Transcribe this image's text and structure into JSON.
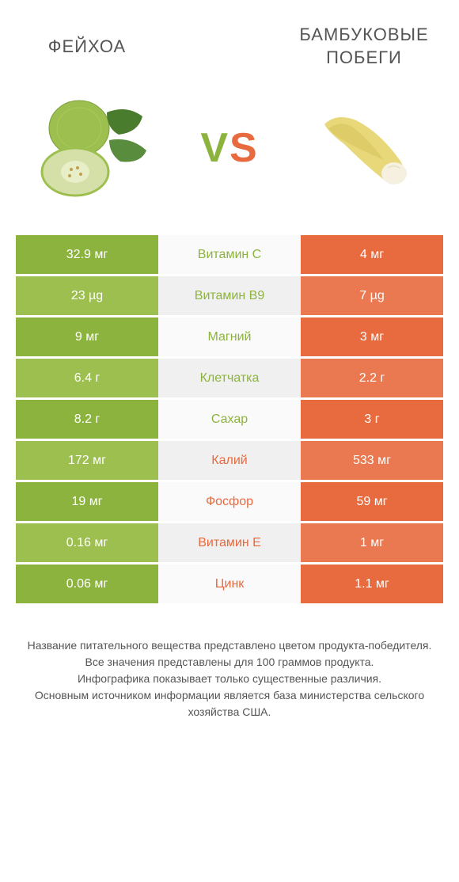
{
  "header": {
    "left_title": "ФЕЙХОА",
    "right_title": "БАМБУКОВЫЕ ПОБЕГИ",
    "vs_v": "V",
    "vs_s": "S"
  },
  "colors": {
    "left_primary": "#8db33f",
    "left_secondary": "#9cbf4f",
    "right_primary": "#e86a3f",
    "right_secondary": "#ea7850",
    "center_label_left": "#8db33f",
    "center_label_right": "#e86a3f",
    "text_muted": "#555555"
  },
  "rows": [
    {
      "left": "32.9 мг",
      "center": "Витамин C",
      "right": "4 мг",
      "winner": "left"
    },
    {
      "left": "23 µg",
      "center": "Витамин B9",
      "right": "7 µg",
      "winner": "left"
    },
    {
      "left": "9 мг",
      "center": "Магний",
      "right": "3 мг",
      "winner": "left"
    },
    {
      "left": "6.4 г",
      "center": "Клетчатка",
      "right": "2.2 г",
      "winner": "left"
    },
    {
      "left": "8.2 г",
      "center": "Сахар",
      "right": "3 г",
      "winner": "left"
    },
    {
      "left": "172 мг",
      "center": "Калий",
      "right": "533 мг",
      "winner": "right"
    },
    {
      "left": "19 мг",
      "center": "Фосфор",
      "right": "59 мг",
      "winner": "right"
    },
    {
      "left": "0.16 мг",
      "center": "Витамин E",
      "right": "1 мг",
      "winner": "right"
    },
    {
      "left": "0.06 мг",
      "center": "Цинк",
      "right": "1.1 мг",
      "winner": "right"
    }
  ],
  "footer": {
    "line1": "Название питательного вещества представлено цветом продукта-победителя.",
    "line2": "Все значения представлены для 100 граммов продукта.",
    "line3": "Инфографика показывает только существенные различия.",
    "line4": "Основным источником информации является база министерства сельского хозяйства США."
  }
}
